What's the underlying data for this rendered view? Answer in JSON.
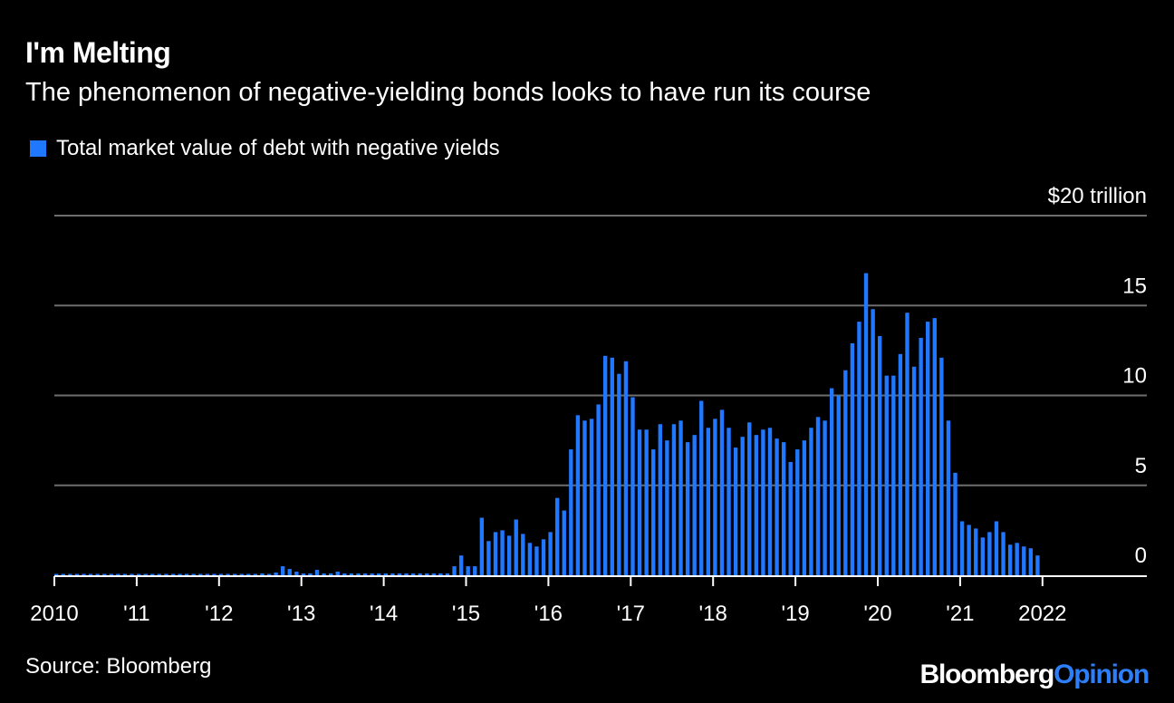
{
  "header": {
    "title": "I'm Melting",
    "subtitle": "The phenomenon of negative-yielding bonds looks to have run its course"
  },
  "legend": {
    "label": "Total market value of debt with negative yields"
  },
  "footer": {
    "source": "Source: Bloomberg",
    "brand_part1": "Bloomberg",
    "brand_part2": "Opinion"
  },
  "colors": {
    "background": "#000000",
    "bar": "#1f78ff",
    "grid": "#6e6e6e",
    "text": "#ffffff",
    "brand_accent": "#2d7ff9"
  },
  "chart_data": {
    "type": "bar",
    "title": "I'm Melting",
    "subtitle": "The phenomenon of negative-yielding bonds looks to have run its course",
    "series": [
      {
        "name": "Total market value of debt with negative yields",
        "unit": "$ trillion"
      }
    ],
    "ylabel": "$ trillion",
    "ylim": [
      0,
      20
    ],
    "yticks": [
      {
        "value": 20,
        "label": "$20 trillion"
      },
      {
        "value": 15,
        "label": "15"
      },
      {
        "value": 10,
        "label": "10"
      },
      {
        "value": 5,
        "label": "5"
      },
      {
        "value": 0,
        "label": "0"
      }
    ],
    "xticks": [
      {
        "year": 2010,
        "label": "2010"
      },
      {
        "year": 2011,
        "label": "'11"
      },
      {
        "year": 2012,
        "label": "'12"
      },
      {
        "year": 2013,
        "label": "'13"
      },
      {
        "year": 2014,
        "label": "'14"
      },
      {
        "year": 2015,
        "label": "'15"
      },
      {
        "year": 2016,
        "label": "'16"
      },
      {
        "year": 2017,
        "label": "'17"
      },
      {
        "year": 2018,
        "label": "'18"
      },
      {
        "year": 2019,
        "label": "'19"
      },
      {
        "year": 2020,
        "label": "'20"
      },
      {
        "year": 2021,
        "label": "'21"
      },
      {
        "year": 2022,
        "label": "2022"
      }
    ],
    "start": "2010-01",
    "frequency": "monthly",
    "values": [
      0.05,
      0.05,
      0.05,
      0.05,
      0.05,
      0.05,
      0.05,
      0.05,
      0.05,
      0.05,
      0.05,
      0.05,
      0.05,
      0.05,
      0.05,
      0.05,
      0.05,
      0.05,
      0.05,
      0.05,
      0.05,
      0.05,
      0.05,
      0.05,
      0.05,
      0.05,
      0.05,
      0.05,
      0.05,
      0.05,
      0.1,
      0.05,
      0.15,
      0.5,
      0.35,
      0.2,
      0.1,
      0.1,
      0.3,
      0.1,
      0.1,
      0.2,
      0.1,
      0.1,
      0.1,
      0.1,
      0.1,
      0.1,
      0.1,
      0.1,
      0.1,
      0.1,
      0.1,
      0.1,
      0.1,
      0.1,
      0.1,
      0.1,
      0.5,
      1.1,
      0.5,
      0.5,
      3.2,
      1.9,
      2.4,
      2.5,
      2.2,
      3.1,
      2.3,
      1.8,
      1.6,
      2.0,
      2.4,
      4.3,
      3.6,
      7.0,
      8.9,
      8.6,
      8.7,
      9.5,
      12.2,
      12.1,
      11.2,
      11.9,
      9.9,
      8.1,
      8.1,
      7.0,
      8.4,
      7.5,
      8.4,
      8.6,
      7.4,
      7.8,
      9.7,
      8.2,
      8.7,
      9.2,
      8.2,
      7.1,
      7.7,
      8.5,
      7.8,
      8.1,
      8.2,
      7.6,
      7.4,
      6.3,
      7.0,
      7.5,
      8.2,
      8.8,
      8.6,
      10.4,
      10.0,
      11.4,
      12.9,
      14.1,
      16.8,
      14.8,
      13.3,
      11.1,
      11.1,
      12.3,
      14.6,
      11.6,
      13.2,
      14.1,
      14.3,
      12.1,
      8.6,
      5.7,
      3.0,
      2.8,
      2.6,
      2.1,
      2.4,
      3.0,
      2.4,
      1.7,
      1.8,
      1.6,
      1.5,
      1.1
    ]
  }
}
